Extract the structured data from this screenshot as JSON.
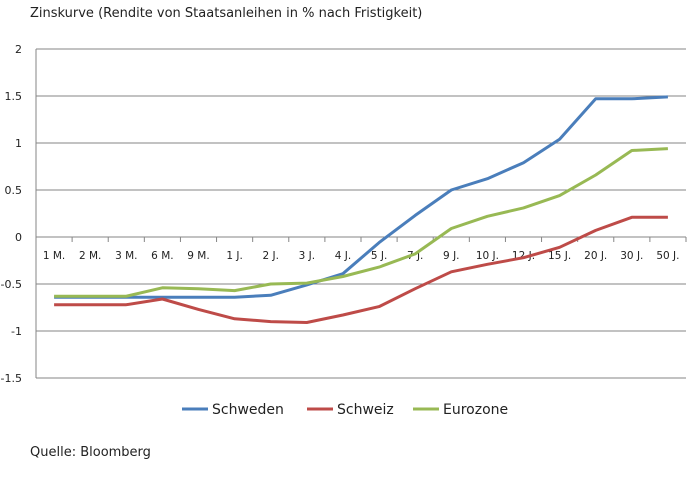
{
  "chart_data": {
    "type": "line",
    "title": "Zinskurve (Rendite von Staatsanleihen in % nach Fristigkeit)",
    "source": "Quelle: Bloomberg",
    "xlabel": "",
    "ylabel": "",
    "ylim": [
      -1.5,
      2
    ],
    "yticks": [
      2,
      1.5,
      1,
      0.5,
      0,
      -0.5,
      -1,
      -1.5
    ],
    "ytick_labels": [
      "2",
      "1.5",
      "1",
      "0.5",
      "0",
      "-0.5",
      "-1",
      "-1.5"
    ],
    "grid": true,
    "legend": "bottom",
    "categories": [
      "1 M.",
      "2 M.",
      "3 M.",
      "6 M.",
      "9 M.",
      "1 J.",
      "2 J.",
      "3 J.",
      "4 J.",
      "5 J.",
      "7 J.",
      "9 J.",
      "10 J.",
      "12 J.",
      "15 J.",
      "20 J.",
      "30 J.",
      "50 J."
    ],
    "series": [
      {
        "name": "Schweden",
        "color": "#4a7ebb",
        "values": [
          -0.64,
          -0.64,
          -0.64,
          -0.64,
          -0.64,
          -0.64,
          -0.62,
          -0.51,
          -0.39,
          -0.06,
          0.23,
          0.5,
          0.62,
          0.79,
          1.04,
          1.47,
          1.47,
          1.49
        ]
      },
      {
        "name": "Schweiz",
        "color": "#be4b48",
        "values": [
          -0.72,
          -0.72,
          -0.72,
          -0.66,
          -0.77,
          -0.87,
          -0.9,
          -0.91,
          -0.83,
          -0.74,
          -0.55,
          -0.37,
          -0.29,
          -0.22,
          -0.11,
          0.07,
          0.21,
          0.21
        ]
      },
      {
        "name": "Eurozone",
        "color": "#98b954",
        "values": [
          -0.63,
          -0.63,
          -0.63,
          -0.54,
          -0.55,
          -0.57,
          -0.5,
          -0.49,
          -0.42,
          -0.32,
          -0.18,
          0.09,
          0.22,
          0.31,
          0.44,
          0.66,
          0.92,
          0.94
        ]
      }
    ]
  }
}
